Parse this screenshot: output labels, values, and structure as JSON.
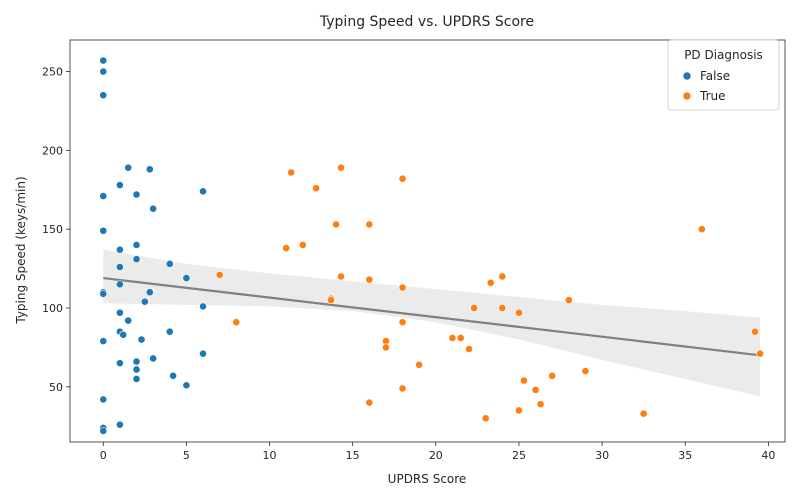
{
  "chart_data": {
    "type": "scatter",
    "title": "Typing Speed vs. UPDRS Score",
    "xlabel": "UPDRS Score",
    "ylabel": "Typing Speed (keys/min)",
    "xlim": [
      -2,
      41
    ],
    "ylim": [
      15,
      270
    ],
    "xticks": [
      0,
      5,
      10,
      15,
      20,
      25,
      30,
      35,
      40
    ],
    "yticks": [
      50,
      100,
      150,
      200,
      250
    ],
    "grid": false,
    "legend": {
      "title": "PD Diagnosis",
      "placement": "top-right",
      "entries": [
        "False",
        "True"
      ]
    },
    "series": [
      {
        "name": "False",
        "color": "#1f77b4",
        "points": [
          [
            0,
            257
          ],
          [
            0,
            250
          ],
          [
            0,
            235
          ],
          [
            0,
            171
          ],
          [
            0,
            149
          ],
          [
            0,
            110
          ],
          [
            0,
            109
          ],
          [
            0,
            79
          ],
          [
            0,
            42
          ],
          [
            0,
            24
          ],
          [
            0,
            22
          ],
          [
            1,
            178
          ],
          [
            1,
            137
          ],
          [
            1,
            126
          ],
          [
            1,
            115
          ],
          [
            1,
            97
          ],
          [
            1,
            85
          ],
          [
            1,
            65
          ],
          [
            1,
            26
          ],
          [
            1.5,
            189
          ],
          [
            1.5,
            92
          ],
          [
            2,
            172
          ],
          [
            2,
            140
          ],
          [
            2,
            131
          ],
          [
            2,
            66
          ],
          [
            2,
            61
          ],
          [
            2,
            55
          ],
          [
            2.3,
            80
          ],
          [
            2.5,
            104
          ],
          [
            2.8,
            188
          ],
          [
            2.8,
            110
          ],
          [
            3,
            163
          ],
          [
            3,
            68
          ],
          [
            4,
            128
          ],
          [
            4,
            85
          ],
          [
            4.2,
            57
          ],
          [
            5,
            119
          ],
          [
            5,
            51
          ],
          [
            6,
            174
          ],
          [
            6,
            101
          ],
          [
            6,
            71
          ],
          [
            1.2,
            83
          ]
        ]
      },
      {
        "name": "True",
        "color": "#ff7f0e",
        "points": [
          [
            7,
            121
          ],
          [
            8,
            91
          ],
          [
            11,
            138
          ],
          [
            11.3,
            186
          ],
          [
            12,
            140
          ],
          [
            12.8,
            176
          ],
          [
            13.7,
            106
          ],
          [
            13.7,
            105
          ],
          [
            14,
            153
          ],
          [
            14.3,
            189
          ],
          [
            14.3,
            120
          ],
          [
            16,
            153
          ],
          [
            16,
            118
          ],
          [
            16,
            40
          ],
          [
            17,
            79
          ],
          [
            17,
            75
          ],
          [
            18,
            182
          ],
          [
            18,
            113
          ],
          [
            18,
            91
          ],
          [
            18,
            49
          ],
          [
            19,
            64
          ],
          [
            21,
            81
          ],
          [
            21.5,
            81
          ],
          [
            22,
            74
          ],
          [
            22.3,
            100
          ],
          [
            23,
            30
          ],
          [
            23.3,
            116
          ],
          [
            24,
            120
          ],
          [
            24,
            100
          ],
          [
            25,
            97
          ],
          [
            25,
            35
          ],
          [
            25.3,
            54
          ],
          [
            26,
            48
          ],
          [
            26.3,
            39
          ],
          [
            27,
            57
          ],
          [
            28,
            105
          ],
          [
            29,
            60
          ],
          [
            32.5,
            33
          ],
          [
            36,
            150
          ],
          [
            39.2,
            85
          ],
          [
            39.5,
            71
          ]
        ]
      }
    ],
    "regression": {
      "color": "#808080",
      "ci_color": "#ebebeb",
      "line": [
        [
          0,
          119
        ],
        [
          39.5,
          70
        ]
      ],
      "ci_upper": [
        [
          0,
          137
        ],
        [
          5,
          128
        ],
        [
          10,
          122
        ],
        [
          15,
          117
        ],
        [
          20,
          112
        ],
        [
          25,
          107
        ],
        [
          30,
          102
        ],
        [
          35,
          98
        ],
        [
          39.5,
          94
        ]
      ],
      "ci_lower": [
        [
          0,
          103
        ],
        [
          5,
          102
        ],
        [
          10,
          101
        ],
        [
          15,
          98
        ],
        [
          20,
          91
        ],
        [
          25,
          80
        ],
        [
          30,
          67
        ],
        [
          35,
          55
        ],
        [
          39.5,
          44
        ]
      ]
    }
  }
}
